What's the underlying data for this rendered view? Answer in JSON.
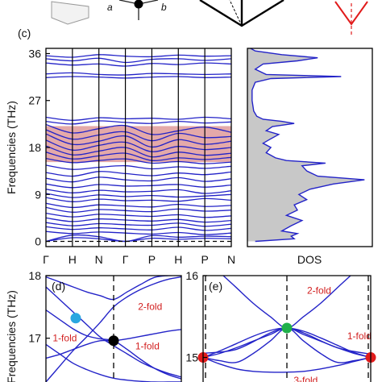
{
  "colors": {
    "band_line": "#2323c8",
    "gap_fill": "#e4a9a9",
    "dos_fill": "#c8c8c8",
    "node_black": "#000000",
    "node_cyan": "#2aa7e0",
    "node_green": "#1fb04a",
    "node_red": "#e11b1b",
    "annot_red": "#d21f1f"
  },
  "top_strip": {
    "vector_labels": [
      "a",
      "b"
    ]
  },
  "chart_data": [
    {
      "type": "line",
      "panel": "(c)",
      "ylabel": "Frequencies (THz)",
      "ylim": [
        -1,
        37
      ],
      "yticks": [
        0,
        9,
        18,
        27,
        36
      ],
      "x_ticks": [
        "Γ",
        "H",
        "N",
        "Γ",
        "P",
        "H",
        "P",
        "N"
      ],
      "x_positions": [
        0,
        1,
        2,
        3,
        4,
        5,
        6,
        7
      ],
      "gap_region": {
        "ymin": 15.2,
        "ymax": 22.1
      },
      "zero_line": 0,
      "series": [
        {
          "values": [
            35.6,
            35.3,
            35.8,
            35.5,
            35.4,
            35.7,
            35.5,
            35.6
          ]
        },
        {
          "values": [
            35.0,
            34.6,
            35.1,
            34.3,
            34.9,
            35.0,
            34.7,
            35.0
          ]
        },
        {
          "values": [
            34.2,
            33.8,
            34.0,
            33.6,
            34.1,
            33.9,
            34.2,
            34.0
          ]
        },
        {
          "values": [
            32.1,
            32.3,
            32.0,
            31.9,
            32.2,
            32.1,
            32.0,
            32.1
          ]
        },
        {
          "values": [
            31.4,
            31.6,
            31.5,
            31.3,
            31.5,
            31.6,
            31.4,
            31.5
          ]
        },
        {
          "values": [
            23.8,
            23.2,
            23.7,
            23.5,
            23.6,
            23.4,
            23.8,
            23.5
          ]
        },
        {
          "values": [
            23.0,
            22.5,
            23.1,
            22.8,
            22.6,
            23.0,
            22.7,
            22.9
          ]
        },
        {
          "values": [
            22.4,
            20.8,
            21.6,
            22.2,
            20.5,
            21.2,
            21.9,
            20.9
          ]
        },
        {
          "values": [
            21.4,
            19.6,
            20.4,
            21.0,
            19.3,
            20.7,
            19.9,
            20.1
          ]
        },
        {
          "values": [
            20.6,
            18.6,
            19.2,
            20.2,
            18.1,
            19.5,
            18.6,
            19.2
          ]
        },
        {
          "values": [
            19.4,
            17.5,
            18.4,
            19.0,
            17.2,
            18.2,
            17.6,
            18.0
          ]
        },
        {
          "values": [
            18.3,
            16.6,
            17.3,
            18.0,
            16.2,
            17.1,
            16.5,
            16.9
          ]
        },
        {
          "values": [
            17.1,
            15.8,
            16.4,
            16.9,
            15.5,
            16.0,
            15.7,
            16.1
          ]
        },
        {
          "values": [
            15.9,
            15.1,
            15.5,
            15.8,
            15.0,
            15.3,
            14.9,
            15.2
          ]
        },
        {
          "values": [
            14.6,
            13.8,
            14.2,
            14.5,
            13.9,
            14.3,
            14.0,
            14.4
          ]
        },
        {
          "values": [
            13.2,
            12.5,
            13.4,
            13.0,
            12.6,
            13.1,
            12.8,
            13.3
          ]
        },
        {
          "values": [
            12.1,
            11.4,
            12.3,
            11.8,
            11.6,
            12.2,
            11.5,
            12.0
          ]
        },
        {
          "values": [
            11.0,
            10.3,
            10.9,
            10.6,
            10.7,
            10.9,
            10.4,
            10.8
          ]
        },
        {
          "values": [
            10.0,
            9.3,
            9.8,
            9.5,
            9.6,
            9.9,
            9.2,
            9.7
          ]
        },
        {
          "values": [
            9.2,
            8.4,
            8.9,
            8.6,
            8.8,
            8.5,
            8.7,
            9.0
          ]
        },
        {
          "values": [
            8.4,
            7.6,
            8.1,
            7.8,
            7.9,
            7.7,
            8.2,
            7.9
          ]
        },
        {
          "values": [
            7.3,
            6.5,
            7.0,
            6.8,
            6.6,
            7.1,
            6.7,
            6.9
          ]
        },
        {
          "values": [
            6.5,
            5.6,
            6.1,
            5.9,
            5.7,
            6.2,
            5.8,
            6.0
          ]
        },
        {
          "values": [
            5.4,
            4.7,
            5.2,
            5.0,
            4.8,
            5.1,
            4.6,
            4.9
          ]
        },
        {
          "values": [
            4.5,
            3.8,
            4.3,
            4.1,
            3.9,
            4.2,
            3.7,
            4.0
          ]
        },
        {
          "values": [
            3.6,
            3.0,
            3.4,
            3.2,
            3.1,
            3.5,
            2.9,
            3.3
          ]
        },
        {
          "values": [
            2.8,
            2.3,
            2.6,
            2.4,
            2.2,
            2.7,
            2.1,
            2.5
          ]
        },
        {
          "values": [
            1.9,
            1.5,
            1.8,
            1.6,
            1.4,
            1.7,
            1.3,
            1.6
          ]
        },
        {
          "values": [
            0,
            1.2,
            0.9,
            0,
            1.1,
            0.8,
            1.0,
            0.9
          ]
        },
        {
          "values": [
            0,
            0.7,
            0.5,
            0,
            0.6,
            0.4,
            0.6,
            0.5
          ]
        }
      ]
    },
    {
      "type": "area",
      "panel": "DOS",
      "xlabel": "DOS",
      "ylim": [
        -1,
        37
      ],
      "y": [
        0,
        0.5,
        1,
        1.5,
        2,
        3,
        4,
        5,
        6,
        7,
        8,
        9,
        10,
        11,
        11.8,
        12.5,
        13.5,
        14.5,
        15.0,
        15.5,
        16.0,
        17.0,
        18.0,
        18.8,
        19.5,
        20.5,
        21.2,
        22.0,
        22.6,
        23.0,
        23.4,
        24.0,
        25.0,
        27.0,
        29.0,
        30.5,
        31.2,
        31.6,
        32.0,
        33.0,
        34.0,
        34.6,
        35.2,
        35.8,
        36.5,
        37.0
      ],
      "values": [
        0.05,
        0.3,
        0.28,
        0.32,
        0.22,
        0.28,
        0.35,
        0.25,
        0.32,
        0.3,
        0.38,
        0.33,
        0.4,
        0.55,
        0.75,
        0.45,
        0.38,
        0.35,
        0.5,
        0.25,
        0.18,
        0.12,
        0.15,
        0.1,
        0.14,
        0.2,
        0.12,
        0.16,
        0.3,
        0.22,
        0.1,
        0.06,
        0.04,
        0.03,
        0.03,
        0.05,
        0.15,
        0.6,
        0.12,
        0.05,
        0.1,
        0.32,
        0.45,
        0.22,
        0.05,
        0.02
      ]
    },
    {
      "type": "line",
      "panel": "(d)",
      "ylabel": "Frequencies (THz)",
      "ylim": [
        16.3,
        18
      ],
      "yticks": [
        17,
        18
      ],
      "xlim": [
        0,
        1
      ],
      "dashed_x": 0.5,
      "series": [
        {
          "x": [
            0.0,
            0.1,
            0.2,
            0.3,
            0.4,
            0.5,
            0.6,
            0.7,
            0.8,
            0.9,
            1.0
          ],
          "values": [
            16.3,
            16.55,
            16.8,
            17.02,
            17.25,
            17.5,
            17.66,
            17.78,
            17.87,
            17.94,
            17.98
          ]
        },
        {
          "x": [
            0.0,
            0.1,
            0.2,
            0.3,
            0.4,
            0.5,
            0.6,
            0.7,
            0.8,
            0.9,
            1.0
          ],
          "values": [
            17.82,
            17.62,
            17.42,
            17.22,
            17.02,
            16.88,
            16.75,
            16.62,
            16.52,
            16.44,
            16.38
          ]
        },
        {
          "x": [
            0.0,
            0.1,
            0.2,
            0.3,
            0.4,
            0.5,
            0.6,
            0.7,
            0.8,
            0.9,
            1.0
          ],
          "values": [
            16.68,
            16.74,
            16.82,
            16.9,
            16.96,
            16.96,
            16.99,
            17.03,
            17.07,
            17.11,
            17.14
          ]
        },
        {
          "x": [
            0.0,
            0.1,
            0.2,
            0.3,
            0.4,
            0.5,
            0.6,
            0.7,
            0.8,
            0.9,
            1.0
          ],
          "values": [
            17.45,
            17.3,
            17.15,
            17.04,
            16.99,
            16.96,
            16.82,
            16.66,
            16.52,
            16.42,
            16.35
          ]
        },
        {
          "x": [
            0.0,
            0.1,
            0.2,
            0.3,
            0.4,
            0.5,
            0.6,
            0.7,
            0.8,
            0.9,
            1.0
          ],
          "values": [
            17.98,
            17.9,
            17.82,
            17.74,
            17.68,
            17.62,
            17.74,
            17.86,
            17.97,
            18.0,
            18.0
          ]
        },
        {
          "x": [
            0.0,
            0.1,
            0.2,
            0.3,
            0.4,
            0.5,
            0.6,
            0.7,
            0.8,
            0.9,
            1.0
          ],
          "values": [
            16.9,
            16.75,
            16.6,
            16.5,
            16.42,
            16.36,
            16.33,
            16.31,
            16.3,
            16.3,
            16.3
          ]
        }
      ],
      "nodes": [
        {
          "x": 0.5,
          "y": 16.96,
          "color": "black"
        },
        {
          "x": 0.22,
          "y": 17.32,
          "color": "cyan"
        }
      ],
      "annotations": [
        {
          "text": "2-fold",
          "x": 0.68,
          "y": 17.45
        },
        {
          "text": "1-fold",
          "x": 0.05,
          "y": 16.95
        },
        {
          "text": "1-fold",
          "x": 0.66,
          "y": 16.82
        }
      ]
    },
    {
      "type": "line",
      "panel": "(e)",
      "ylim": [
        14.7,
        16
      ],
      "yticks": [
        15,
        16
      ],
      "xlim": [
        0,
        1
      ],
      "dashed_x": [
        0.0,
        0.5,
        1.0
      ],
      "series": [
        {
          "x": [
            0.0,
            0.1,
            0.2,
            0.3,
            0.4,
            0.5,
            0.6,
            0.7,
            0.8,
            0.9,
            1.0
          ],
          "values": [
            15.0,
            15.08,
            15.17,
            15.26,
            15.33,
            15.36,
            15.32,
            15.24,
            15.15,
            15.06,
            15.0
          ]
        },
        {
          "x": [
            0.0,
            0.1,
            0.2,
            0.3,
            0.4,
            0.5,
            0.6,
            0.7,
            0.8,
            0.9,
            1.0
          ],
          "values": [
            15.0,
            15.05,
            15.12,
            15.2,
            15.28,
            15.36,
            15.28,
            15.2,
            15.12,
            15.05,
            15.0
          ]
        },
        {
          "x": [
            0.0,
            0.1,
            0.2,
            0.3,
            0.4,
            0.5,
            0.6,
            0.7,
            0.8,
            0.9,
            1.0
          ],
          "values": [
            15.0,
            14.96,
            14.94,
            15.05,
            15.2,
            15.36,
            15.2,
            15.05,
            14.94,
            14.96,
            15.0
          ]
        },
        {
          "x": [
            0.0,
            0.1,
            0.2,
            0.3,
            0.4,
            0.5,
            0.6,
            0.7,
            0.8,
            0.9,
            1.0
          ],
          "values": [
            15.0,
            14.92,
            14.86,
            14.83,
            14.82,
            14.82,
            14.83,
            14.86,
            14.9,
            14.95,
            15.0
          ]
        },
        {
          "x": [
            0.12,
            0.2,
            0.3,
            0.4,
            0.5,
            0.6,
            0.7,
            0.8,
            0.88
          ],
          "values": [
            16.0,
            15.85,
            15.66,
            15.5,
            15.36,
            15.5,
            15.66,
            15.85,
            16.0
          ]
        },
        {
          "x": [
            0.0,
            0.2,
            0.4,
            0.5,
            0.6,
            0.8,
            1.0
          ],
          "values": [
            15.05,
            15.1,
            15.3,
            15.36,
            15.3,
            15.12,
            15.04
          ]
        }
      ],
      "nodes": [
        {
          "x": 0.0,
          "y": 15.0,
          "color": "red"
        },
        {
          "x": 0.5,
          "y": 15.36,
          "color": "green"
        },
        {
          "x": 1.0,
          "y": 15.0,
          "color": "red"
        }
      ],
      "annotations": [
        {
          "text": "2-fold",
          "x": 0.62,
          "y": 15.78
        },
        {
          "text": "1-fold",
          "x": 0.86,
          "y": 15.22
        },
        {
          "text": "3-fold",
          "x": 0.54,
          "y": 14.68
        }
      ]
    }
  ]
}
